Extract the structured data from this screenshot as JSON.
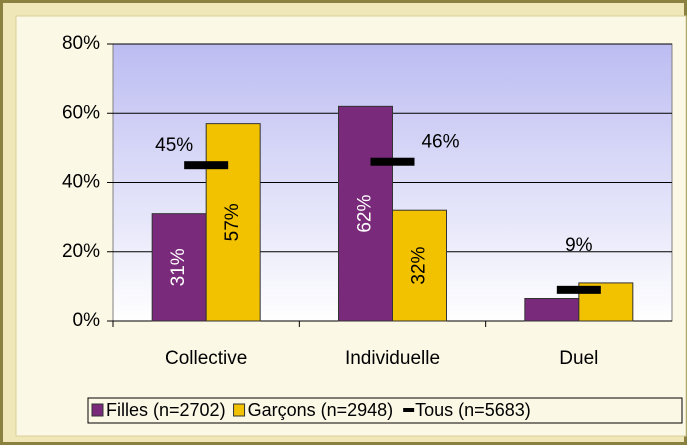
{
  "chart_data": {
    "type": "bar",
    "categories": [
      "Collective",
      "Individuelle",
      "Duel"
    ],
    "series": [
      {
        "name": "Filles (n=2702)",
        "color": "#7a2a7a",
        "values": [
          31,
          62,
          6.5
        ],
        "value_labels": [
          "31%",
          "62%",
          null
        ]
      },
      {
        "name": "Garçons (n=2948)",
        "color": "#f2c200",
        "values": [
          57,
          32,
          11
        ],
        "value_labels": [
          "57%",
          "32%",
          null
        ]
      },
      {
        "name": "Tous (n=5683)",
        "color": "#000000",
        "marker": "dash",
        "values": [
          45,
          46,
          9
        ],
        "value_labels": [
          "45%",
          "46%",
          "9%"
        ]
      }
    ],
    "ylim": [
      0,
      80
    ],
    "yticks": [
      {
        "value": 0,
        "label": "0%"
      },
      {
        "value": 20,
        "label": "20%"
      },
      {
        "value": 40,
        "label": "40%"
      },
      {
        "value": 60,
        "label": "60%"
      },
      {
        "value": 80,
        "label": "80%"
      }
    ],
    "grid": true
  }
}
